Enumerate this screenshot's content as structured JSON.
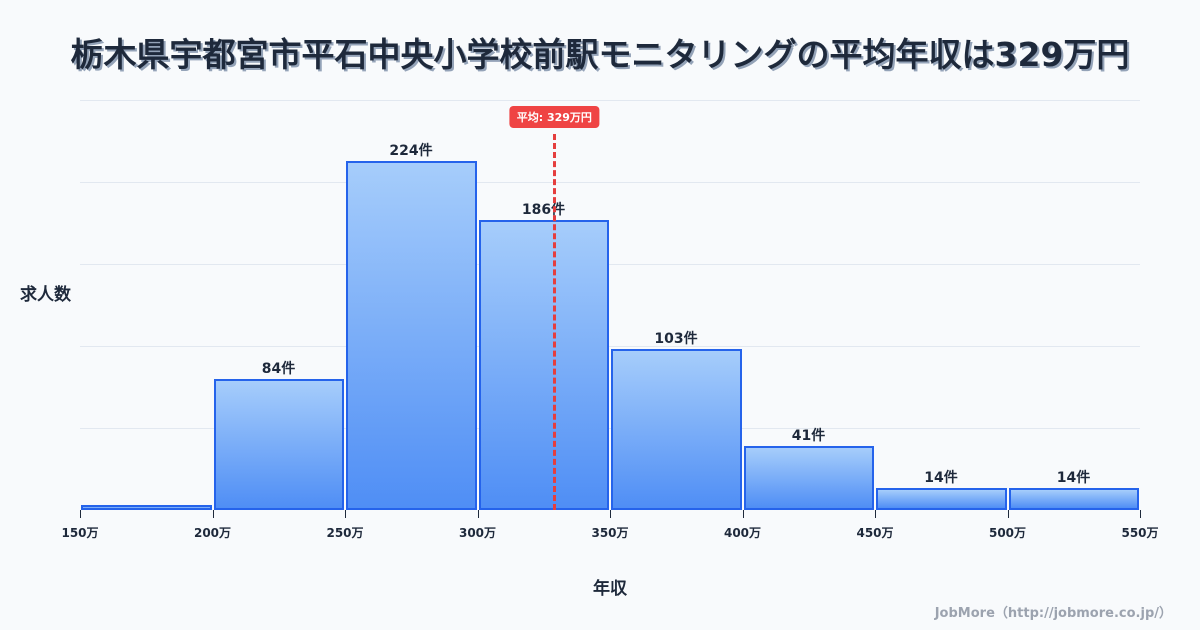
{
  "title": "栃木県宇都宮市平石中央小学校前駅モニタリングの平均年収は329万円",
  "ylabel": "求人数",
  "xlabel": "年収",
  "credit": "JobMore（http://jobmore.co.jp/）",
  "mean_badge": "平均: 329万円",
  "colors": {
    "bar_border": "#2563eb",
    "bar_top": "#a6cdfb",
    "bar_bottom": "#4f8ef5",
    "mean_line": "#e53e3e",
    "background": "#f8fafc",
    "text": "#1e293b"
  },
  "chart_data": {
    "type": "bar",
    "title": "栃木県宇都宮市平石中央小学校前駅モニタリングの平均年収は329万円",
    "xlabel": "年収",
    "ylabel": "求人数",
    "categories": [
      "150-200万",
      "200-250万",
      "250-300万",
      "300-350万",
      "350-400万",
      "400-450万",
      "450-500万",
      "500-550万"
    ],
    "values": [
      3,
      84,
      224,
      186,
      103,
      41,
      14,
      14
    ],
    "value_labels": [
      "",
      "84件",
      "224件",
      "186件",
      "103件",
      "41件",
      "14件",
      "14件"
    ],
    "x_ticks": [
      "150万",
      "200万",
      "250万",
      "300万",
      "350万",
      "400万",
      "450万",
      "500万",
      "550万"
    ],
    "ylim": [
      0,
      263
    ],
    "grid": true,
    "annotations": [
      {
        "type": "vline",
        "x": 329,
        "label": "平均: 329万円"
      }
    ]
  }
}
